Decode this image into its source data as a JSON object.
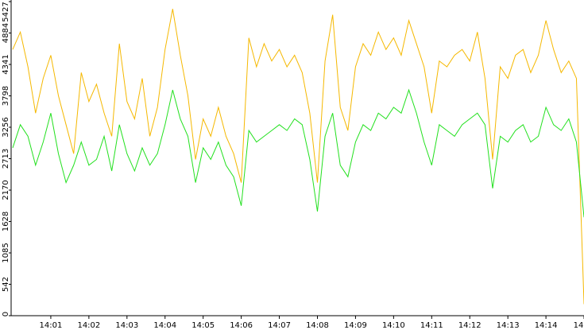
{
  "chart_data": {
    "type": "line",
    "x": [
      0,
      0.2,
      0.4,
      0.6,
      0.8,
      1,
      1.2,
      1.4,
      1.6,
      1.8,
      2,
      2.2,
      2.4,
      2.6,
      2.8,
      3,
      3.2,
      3.4,
      3.6,
      3.8,
      4,
      4.2,
      4.4,
      4.6,
      4.8,
      5,
      5.2,
      5.4,
      5.6,
      5.8,
      6,
      6.2,
      6.4,
      6.6,
      6.8,
      7,
      7.2,
      7.4,
      7.6,
      7.8,
      8,
      8.2,
      8.4,
      8.6,
      8.8,
      9,
      9.2,
      9.4,
      9.6,
      9.8,
      10,
      10.2,
      10.4,
      10.6,
      10.8,
      11,
      11.2,
      11.4,
      11.6,
      11.8,
      12,
      12.2,
      12.4,
      12.6,
      12.8,
      13,
      13.2,
      13.4,
      13.6,
      13.8,
      14,
      14.2,
      14.4,
      14.6,
      14.8,
      15
    ],
    "series": [
      {
        "color": "#f5b800",
        "values": [
          4600,
          4900,
          4300,
          3500,
          4100,
          4500,
          3800,
          3300,
          2800,
          4200,
          3700,
          4000,
          3500,
          3100,
          4700,
          3700,
          3400,
          4100,
          3100,
          3600,
          4600,
          5300,
          4500,
          3800,
          2700,
          3400,
          3100,
          3600,
          3100,
          2800,
          2300,
          4800,
          4300,
          4700,
          4400,
          4600,
          4300,
          4500,
          4200,
          3500,
          2300,
          4400,
          5200,
          3600,
          3200,
          4300,
          4700,
          4500,
          4900,
          4600,
          4800,
          4500,
          5100,
          4700,
          4300,
          3500,
          4400,
          4300,
          4500,
          4600,
          4400,
          4900,
          4100,
          2700,
          4300,
          4100,
          4500,
          4600,
          4200,
          4500,
          5100,
          4600,
          4200,
          4400,
          4100,
          200
        ]
      },
      {
        "color": "#22e01e",
        "values": [
          2900,
          3300,
          3100,
          2600,
          3000,
          3500,
          2800,
          2300,
          2600,
          3000,
          2600,
          2700,
          3100,
          2500,
          3300,
          2800,
          2500,
          2900,
          2600,
          2800,
          3300,
          3900,
          3400,
          3100,
          2300,
          2900,
          2700,
          3000,
          2600,
          2400,
          1900,
          3200,
          3000,
          3100,
          3200,
          3300,
          3200,
          3400,
          3300,
          2700,
          1800,
          3100,
          3500,
          2600,
          2400,
          3000,
          3300,
          3200,
          3500,
          3400,
          3600,
          3500,
          3900,
          3500,
          3000,
          2600,
          3300,
          3200,
          3100,
          3300,
          3400,
          3500,
          3300,
          2200,
          3100,
          3000,
          3200,
          3300,
          3000,
          3100,
          3600,
          3300,
          3200,
          3400,
          3000,
          1700
        ]
      }
    ],
    "xlim": [
      0,
      15.02
    ],
    "xticks": [
      {
        "value": 1,
        "label": "14:01"
      },
      {
        "value": 2,
        "label": "14:02"
      },
      {
        "value": 3,
        "label": "14:03"
      },
      {
        "value": 4,
        "label": "14:04"
      },
      {
        "value": 5,
        "label": "14:05"
      },
      {
        "value": 6,
        "label": "14:06"
      },
      {
        "value": 7,
        "label": "14:07"
      },
      {
        "value": 8,
        "label": "14:08"
      },
      {
        "value": 9,
        "label": "14:09"
      },
      {
        "value": 10,
        "label": "14:10"
      },
      {
        "value": 11,
        "label": "14:11"
      },
      {
        "value": 12,
        "label": "14:12"
      },
      {
        "value": 13,
        "label": "14:13"
      },
      {
        "value": 14,
        "label": "14:14"
      },
      {
        "value": 15,
        "label": "14"
      }
    ],
    "ylim": [
      0,
      5427
    ],
    "yticks": [
      0,
      542,
      1085,
      1628,
      2170,
      2713,
      3256,
      3798,
      4341,
      4884,
      5427
    ]
  }
}
